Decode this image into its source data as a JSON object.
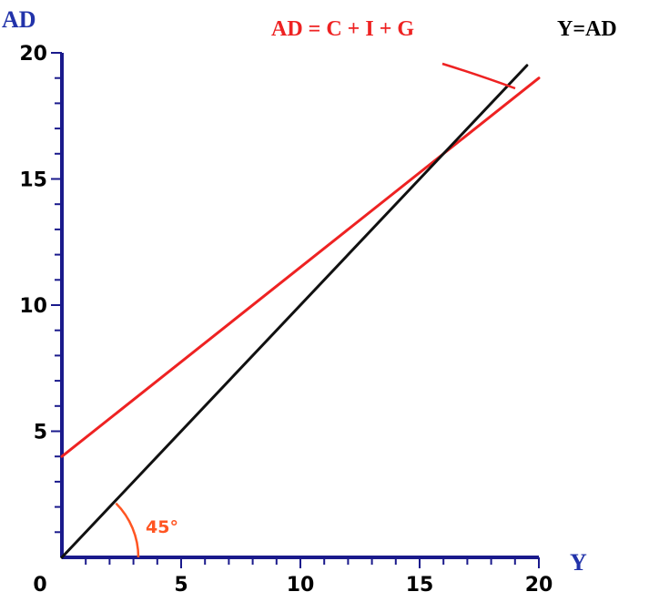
{
  "chart_data": {
    "type": "line",
    "xlabel": "Y",
    "ylabel": "AD",
    "xlim": [
      0,
      20
    ],
    "ylim": [
      0,
      20
    ],
    "x_ticks": [
      "0",
      "5",
      "10",
      "15",
      "20"
    ],
    "y_ticks": [
      "5",
      "10",
      "15",
      "20"
    ],
    "grid": false,
    "series": [
      {
        "name": "AD = C + I + G",
        "color": "#ee2222",
        "x": [
          0,
          20
        ],
        "y": [
          4,
          19
        ]
      },
      {
        "name": "Y=AD",
        "color": "#111111",
        "x": [
          0,
          19.5
        ],
        "y": [
          0,
          19.5
        ]
      }
    ],
    "annotations": {
      "angle": "45°",
      "angle_color": "#ff5522"
    },
    "axis_color": "#1a1a8c",
    "axis_title_color": "#2233aa"
  }
}
